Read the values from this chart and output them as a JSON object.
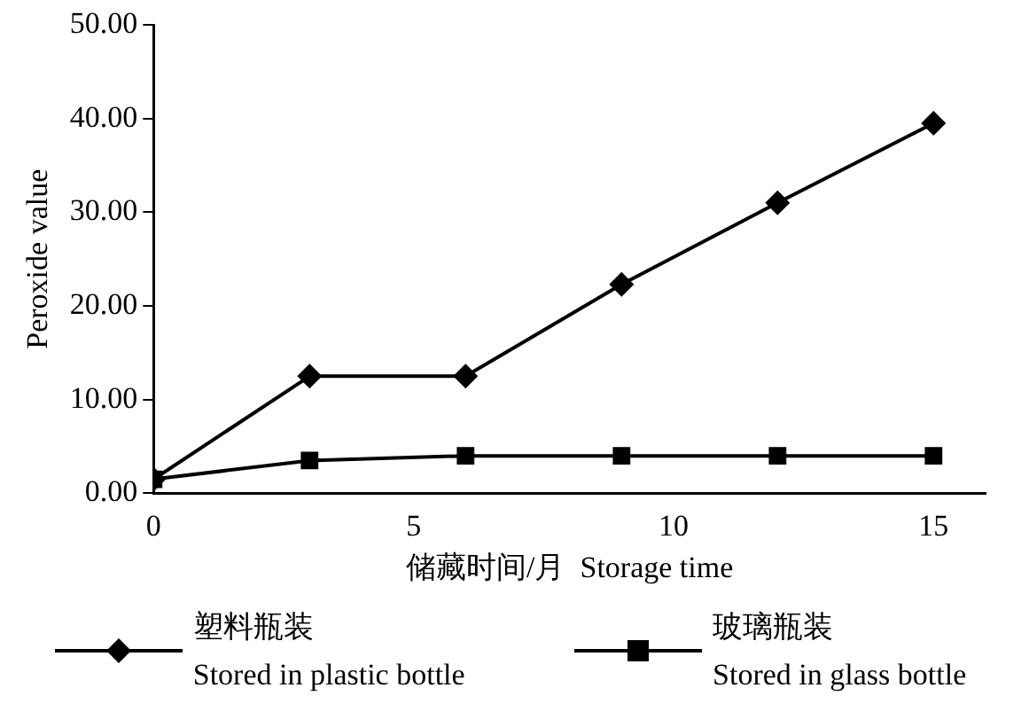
{
  "chart_data": {
    "type": "line",
    "xlabel": "储藏时间/月  Storage time",
    "ylabel": "Peroxide value",
    "x": [
      0,
      3,
      6,
      9,
      12,
      15
    ],
    "series": [
      {
        "name": "塑料瓶装\nStored in plastic bottle",
        "color": "#000000",
        "marker": "diamond",
        "values": [
          1.5,
          12.5,
          12.5,
          22.3,
          31,
          39.5
        ]
      },
      {
        "name": "玻璃瓶装\nStored in glass bottle",
        "color": "#000000",
        "marker": "square",
        "values": [
          1.5,
          3.5,
          4,
          4,
          4,
          4
        ]
      }
    ],
    "xlim": [
      0,
      16
    ],
    "xticks": [
      0,
      5,
      10,
      15
    ],
    "ylim": [
      0,
      50
    ],
    "yticks": [
      {
        "value": 0,
        "label": "0.00"
      },
      {
        "value": 10,
        "label": "10.00"
      },
      {
        "value": 20,
        "label": "20.00"
      },
      {
        "value": 30,
        "label": "30.00"
      },
      {
        "value": 40,
        "label": "40.00"
      },
      {
        "value": 50,
        "label": "50.00"
      }
    ],
    "grid": false,
    "legend": "bottom",
    "line_style": "solid"
  }
}
